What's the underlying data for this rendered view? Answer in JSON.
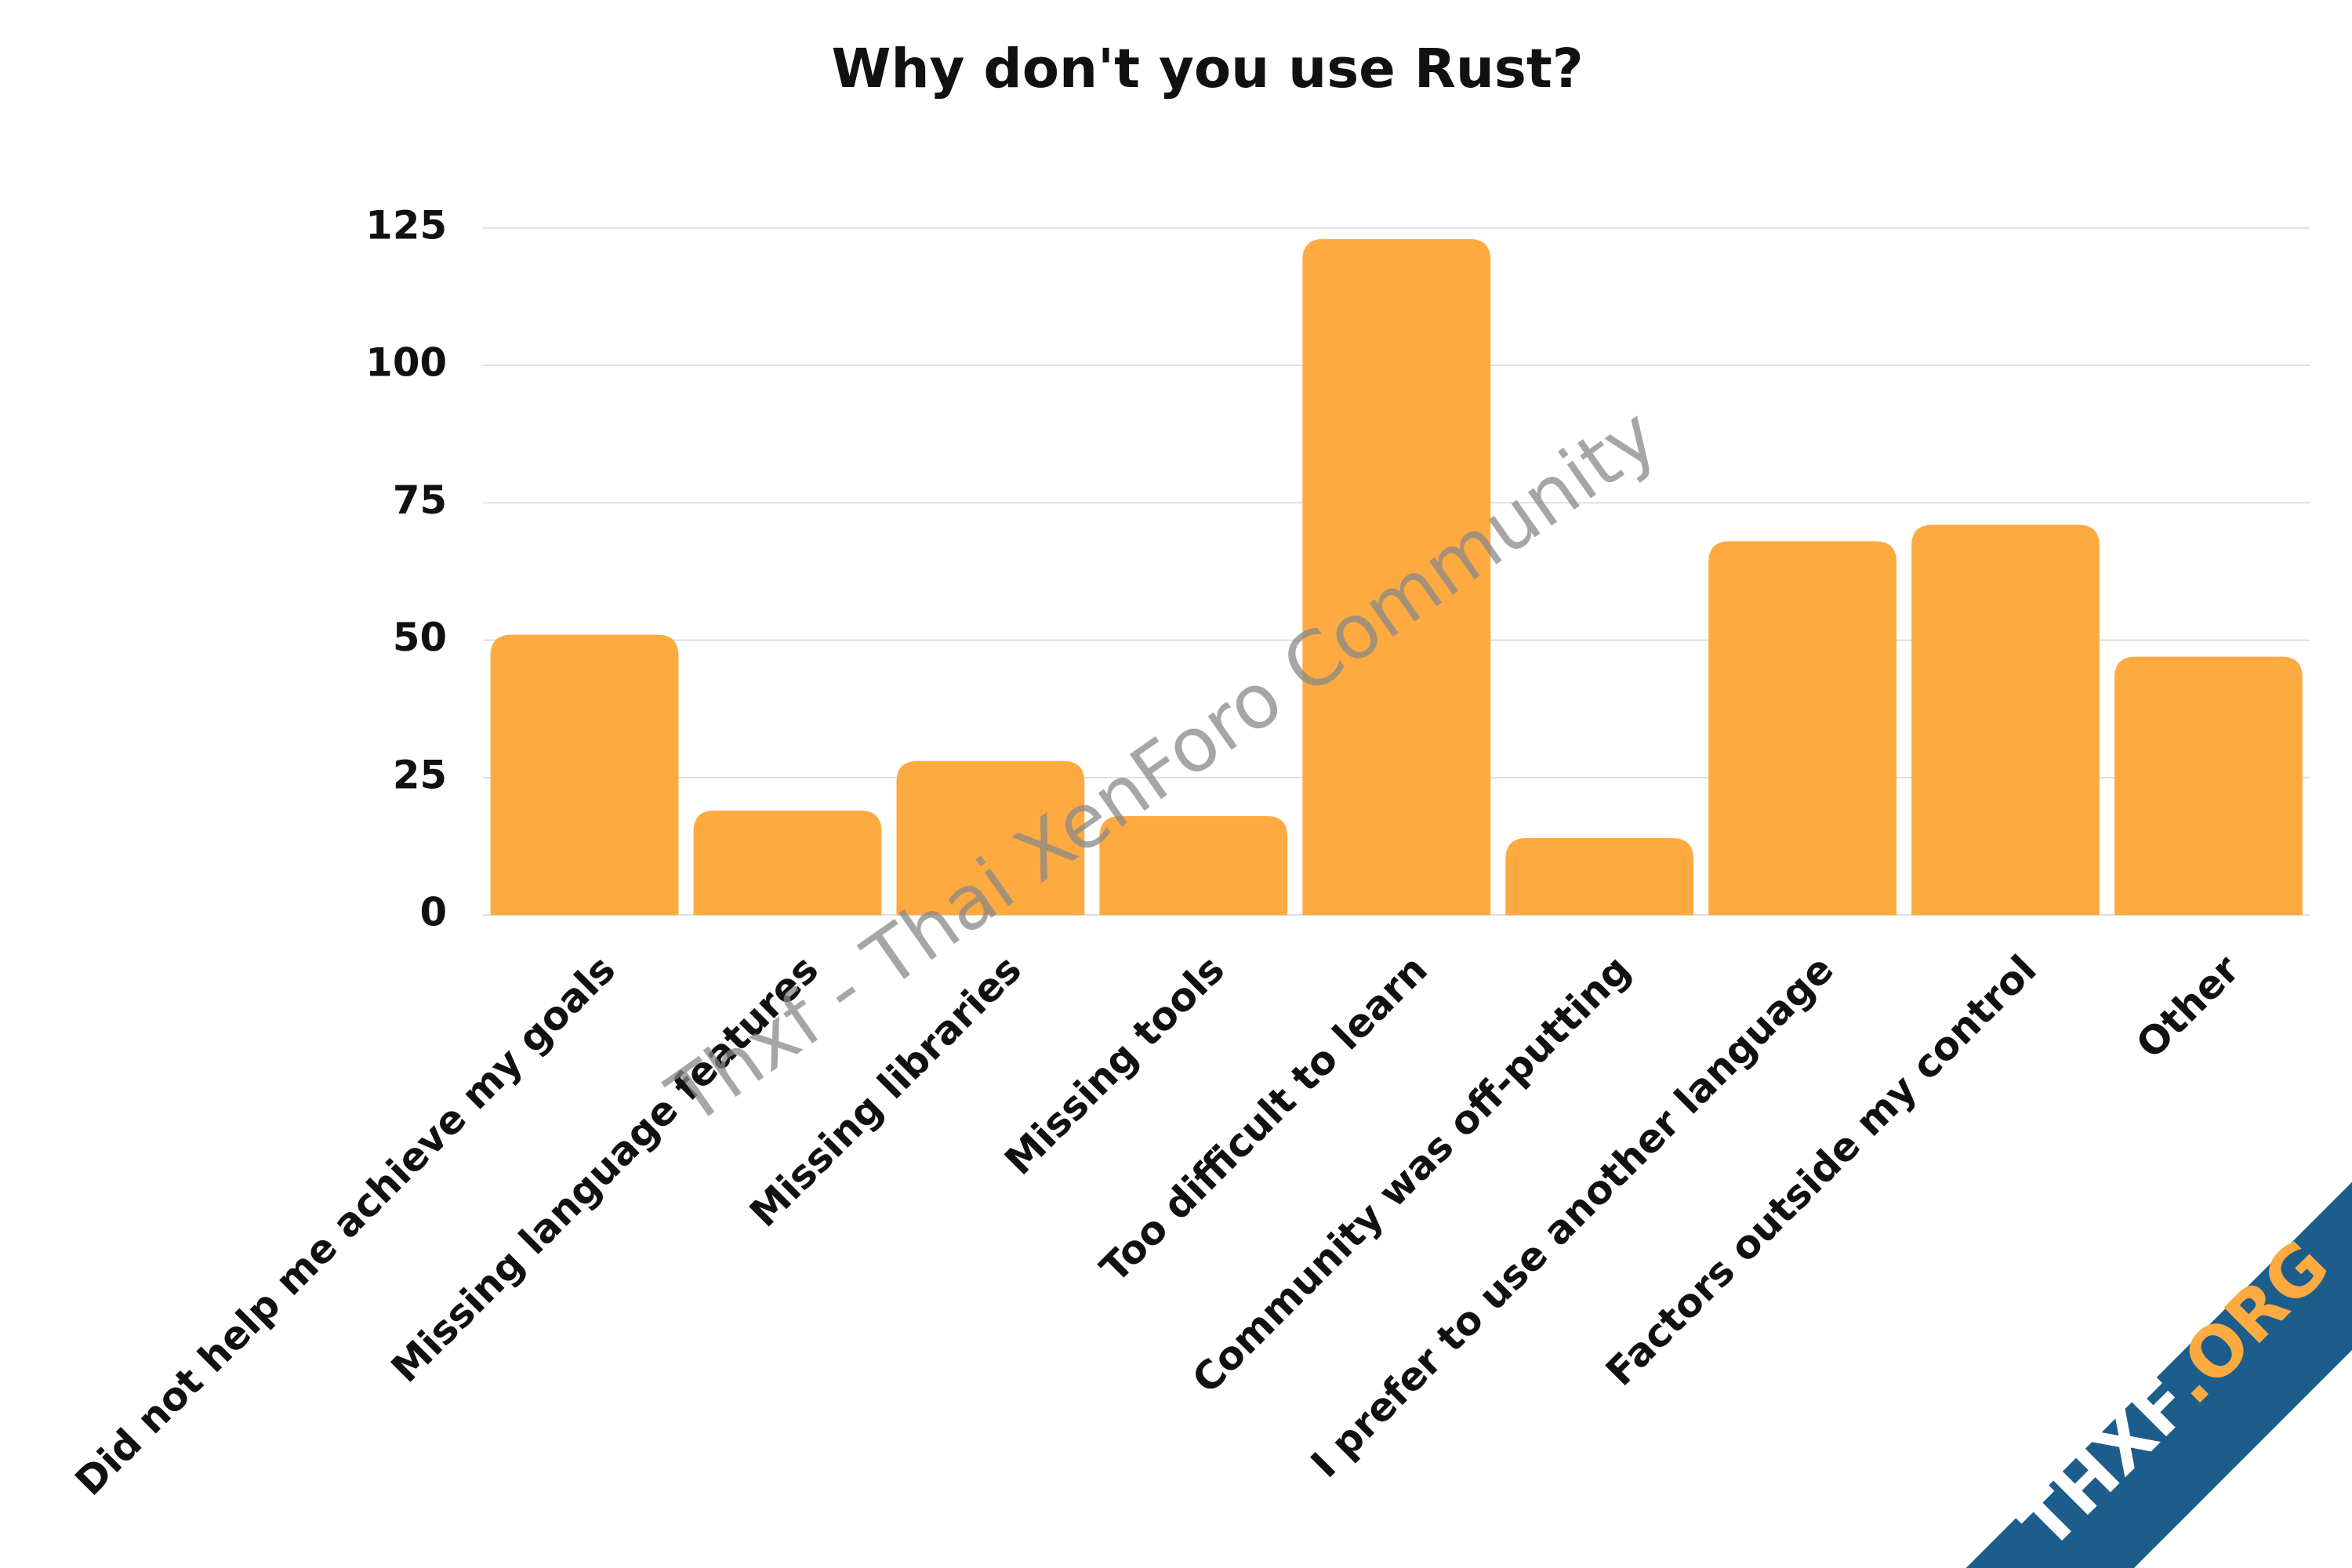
{
  "chart_data": {
    "type": "bar",
    "title": "Why don't you use Rust?",
    "categories": [
      "Did not help me achieve my goals",
      "Missing language features",
      "Missing libraries",
      "Missing tools",
      "Too difficult to learn",
      "Community was off-putting",
      "I prefer to use another language",
      "Factors outside my control",
      "Other"
    ],
    "values": [
      51,
      19,
      28,
      18,
      123,
      14,
      68,
      71,
      47
    ],
    "color": "#fdaa41",
    "ylim": [
      0,
      125
    ],
    "yticks": [
      0,
      25,
      50,
      75,
      100,
      125
    ],
    "grid": true,
    "watermark": "Thxf - Thai XenForo Community",
    "badge": [
      "THXF",
      ".ORG"
    ]
  }
}
